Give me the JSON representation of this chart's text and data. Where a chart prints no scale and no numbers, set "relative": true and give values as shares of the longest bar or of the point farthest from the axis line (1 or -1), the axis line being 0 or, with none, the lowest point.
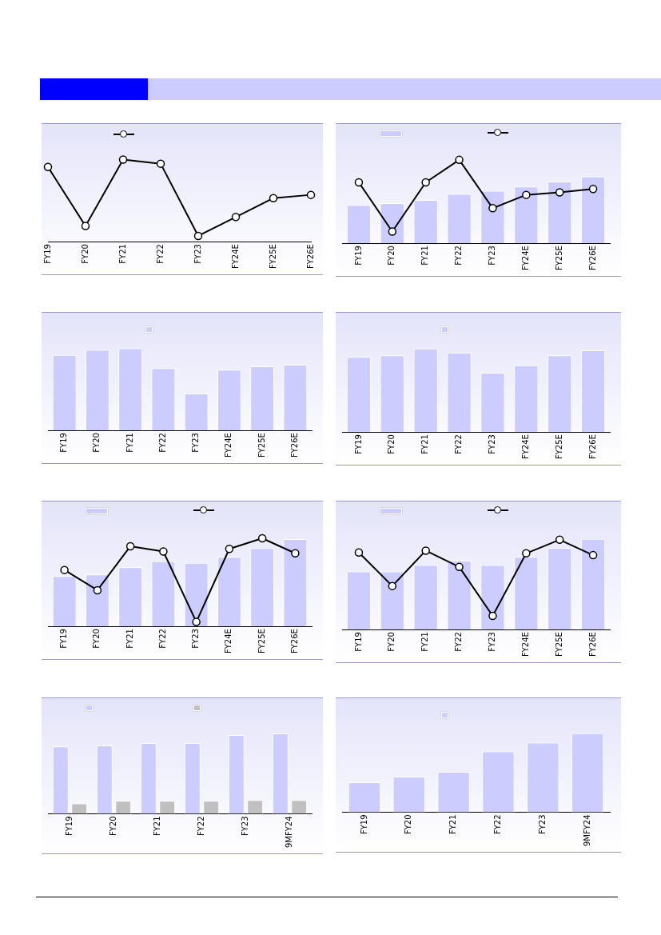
{
  "chart_data": [
    {
      "type": "line",
      "relative": true,
      "tick_labels": "x",
      "marker": "circle",
      "categories": [
        "FY19",
        "FY20",
        "FY21",
        "FY22",
        "FY23",
        "FY24E",
        "FY25E",
        "FY26E"
      ],
      "series": [
        {
          "color": "#000000",
          "values": [
            0.91,
            0.19,
            1,
            0.95,
            0.07,
            0.3,
            0.53,
            0.57
          ]
        }
      ]
    },
    {
      "type": "bar",
      "relative": true,
      "tick_labels": "x",
      "marker": "circle",
      "categories": [
        "FY19",
        "FY20",
        "FY21",
        "FY22",
        "FY23",
        "FY24E",
        "FY25E",
        "FY26E"
      ],
      "series": [
        {
          "type": "bar",
          "color": "#ccccff",
          "values": [
            0.46,
            0.48,
            0.52,
            0.59,
            0.63,
            0.68,
            0.74,
            0.8
          ]
        },
        {
          "type": "line",
          "color": "#000000",
          "values": [
            0.73,
            0.14,
            0.73,
            1,
            0.42,
            0.58,
            0.61,
            0.65
          ]
        }
      ]
    },
    {
      "type": "bar",
      "relative": true,
      "tick_labels": "x",
      "categories": [
        "FY19",
        "FY20",
        "FY21",
        "FY22",
        "FY23",
        "FY24E",
        "FY25E",
        "FY26E"
      ],
      "series": [
        {
          "color": "#ccccff",
          "values": [
            0.92,
            0.98,
            1,
            0.76,
            0.45,
            0.74,
            0.78,
            0.8
          ]
        }
      ]
    },
    {
      "type": "bar",
      "relative": true,
      "tick_labels": "x",
      "categories": [
        "FY19",
        "FY20",
        "FY21",
        "FY22",
        "FY23",
        "FY24E",
        "FY25E",
        "FY26E"
      ],
      "series": [
        {
          "color": "#ccccff",
          "values": [
            0.9,
            0.92,
            1,
            0.95,
            0.71,
            0.8,
            0.92,
            0.98
          ]
        }
      ]
    },
    {
      "type": "bar",
      "relative": true,
      "tick_labels": "x",
      "marker": "circle",
      "categories": [
        "FY19",
        "FY20",
        "FY21",
        "FY22",
        "FY23",
        "FY24E",
        "FY25E",
        "FY26E"
      ],
      "series": [
        {
          "type": "bar",
          "color": "#ccccff",
          "values": [
            0.57,
            0.59,
            0.67,
            0.74,
            0.72,
            0.79,
            0.89,
            0.99
          ]
        },
        {
          "type": "line",
          "color": "#000000",
          "values": [
            0.64,
            0.41,
            0.91,
            0.85,
            0.05,
            0.88,
            1,
            0.83
          ]
        }
      ]
    },
    {
      "type": "bar",
      "relative": true,
      "tick_labels": "x",
      "marker": "circle",
      "categories": [
        "FY19",
        "FY20",
        "FY21",
        "FY22",
        "FY23",
        "FY24E",
        "FY25E",
        "FY26E"
      ],
      "series": [
        {
          "type": "bar",
          "color": "#ccccff",
          "values": [
            0.64,
            0.64,
            0.71,
            0.76,
            0.71,
            0.8,
            0.9,
            1
          ]
        },
        {
          "type": "line",
          "color": "#000000",
          "values": [
            0.85,
            0.48,
            0.87,
            0.69,
            0.15,
            0.84,
            0.99,
            0.82
          ]
        }
      ]
    },
    {
      "type": "bar",
      "relative": true,
      "tick_labels": "x",
      "categories": [
        "FY19",
        "FY20",
        "FY21",
        "FY22",
        "FY23",
        "9MFY24"
      ],
      "series": [
        {
          "color": "#ccccff",
          "values": [
            0.84,
            0.85,
            0.88,
            0.88,
            0.98,
            1
          ]
        },
        {
          "color": "#c0c0c0",
          "values": [
            0.13,
            0.16,
            0.16,
            0.16,
            0.17,
            0.17
          ]
        }
      ]
    },
    {
      "type": "bar",
      "relative": true,
      "tick_labels": "x",
      "categories": [
        "FY19",
        "FY20",
        "FY21",
        "FY22",
        "FY23",
        "9MFY24"
      ],
      "series": [
        {
          "color": "#ccccff",
          "values": [
            0.38,
            0.45,
            0.51,
            0.77,
            0.88,
            1
          ]
        }
      ]
    }
  ]
}
